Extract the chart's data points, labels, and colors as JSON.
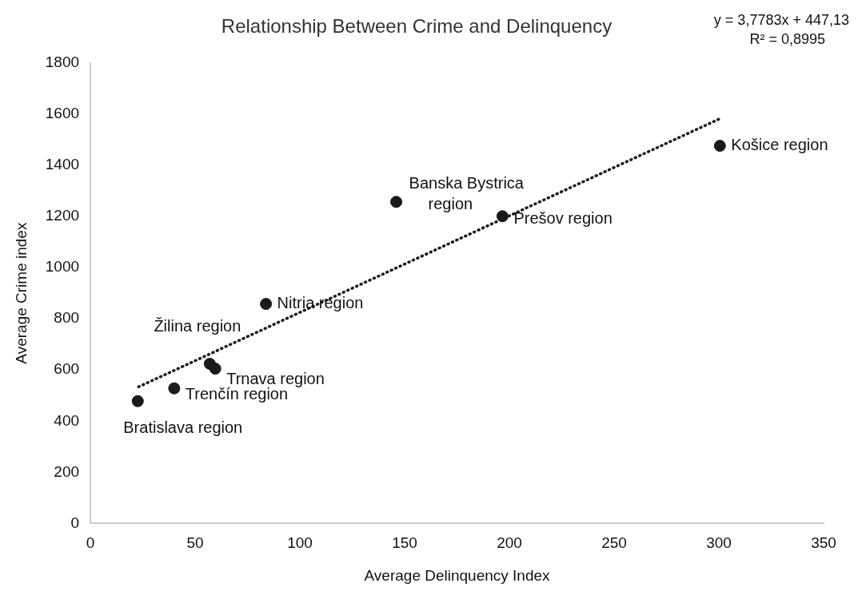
{
  "chart_data": {
    "type": "scatter",
    "title": "Relationship Between Crime and Delinquency",
    "xlabel": "Average Delinquency Index",
    "ylabel": "Average Crime index",
    "xlim": [
      0,
      350
    ],
    "xticks": [
      0,
      50,
      100,
      150,
      200,
      250,
      300,
      350
    ],
    "ylim": [
      0,
      1800
    ],
    "yticks": [
      0,
      200,
      400,
      600,
      800,
      1000,
      1200,
      1400,
      1600,
      1800
    ],
    "grid": false,
    "legend": false,
    "marker": "circle",
    "series": [
      {
        "type": "scatter",
        "color": "#1a1a1a",
        "x": [
          22.6,
          40,
          57,
          59.6,
          83.8,
          146,
          196.7,
          300.5
        ],
        "values": [
          478,
          528,
          624,
          605,
          858,
          1257,
          1201,
          1476
        ]
      },
      {
        "type": "line",
        "color": "#1a1a1a",
        "line_style": "dotted",
        "marker": "none",
        "x": [
          23,
          301
        ],
        "values": [
          534,
          1584
        ]
      }
    ],
    "annotations": [
      {
        "text": "Bratislava region",
        "x": 22.6,
        "y": 478
      },
      {
        "text": "Trenčín region",
        "x": 40,
        "y": 528
      },
      {
        "text": "Žilina region",
        "x": 57,
        "y": 624
      },
      {
        "text": "Trnava region",
        "x": 59.6,
        "y": 605
      },
      {
        "text": "Nitria region",
        "x": 83.8,
        "y": 858
      },
      {
        "text": "Banska Bystrica region",
        "x": 146,
        "y": 1257
      },
      {
        "text": "Prešov region",
        "x": 196.7,
        "y": 1201
      },
      {
        "text": "Košice region",
        "x": 300.5,
        "y": 1476
      },
      "y = 3,7783x + 447,13",
      "R² = 0,8995"
    ]
  }
}
